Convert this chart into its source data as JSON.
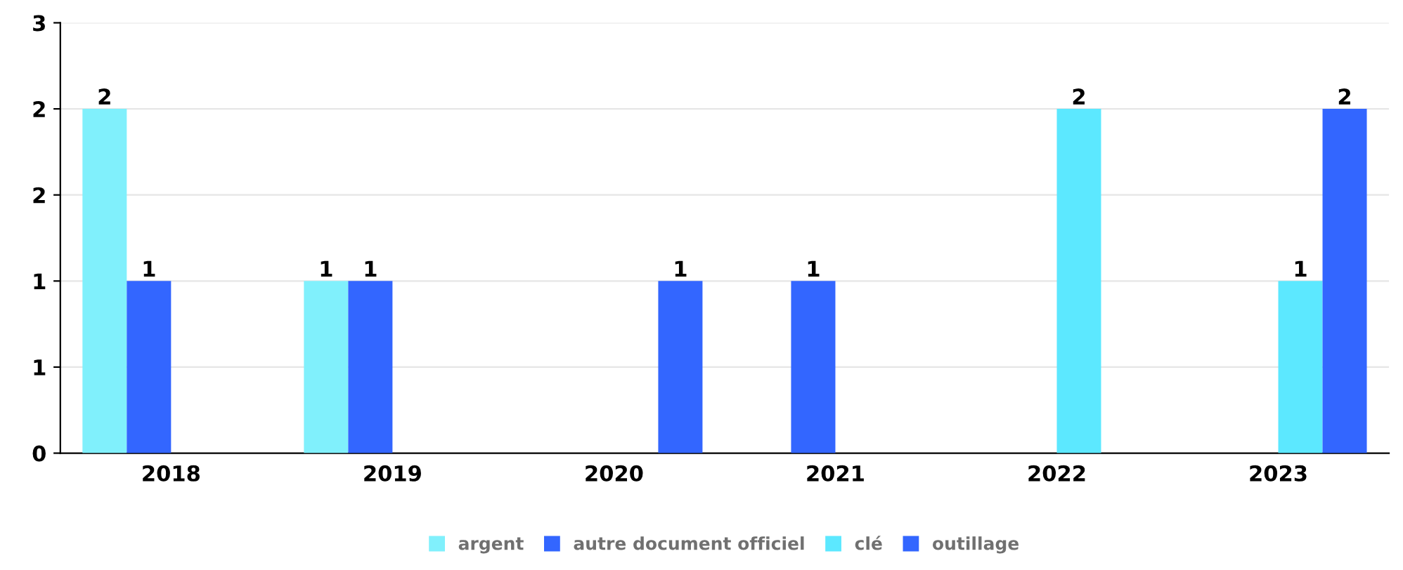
{
  "chart_data": {
    "type": "bar",
    "categories": [
      "2018",
      "2019",
      "2020",
      "2021",
      "2022",
      "2023"
    ],
    "series": [
      {
        "name": "argent",
        "color": "#80f0fc",
        "values": [
          2,
          1,
          null,
          null,
          null,
          null
        ]
      },
      {
        "name": "autre document officiel",
        "color": "#3366ff",
        "values": [
          1,
          1,
          null,
          1,
          null,
          null
        ]
      },
      {
        "name": "clé",
        "color": "#5ce8ff",
        "values": [
          null,
          null,
          null,
          null,
          2,
          1
        ]
      },
      {
        "name": "outillage",
        "color": "#3366ff",
        "values": [
          null,
          null,
          1,
          null,
          null,
          2
        ]
      }
    ],
    "ylim": [
      0,
      2.5
    ],
    "yticks": [
      0,
      {
        "value": 0.5,
        "label": "1"
      },
      1,
      {
        "value": 1.5,
        "label": "2"
      },
      2,
      {
        "value": 2.5,
        "label": "3"
      }
    ],
    "grid": "y",
    "legend": "bottom",
    "data_labels": true
  }
}
